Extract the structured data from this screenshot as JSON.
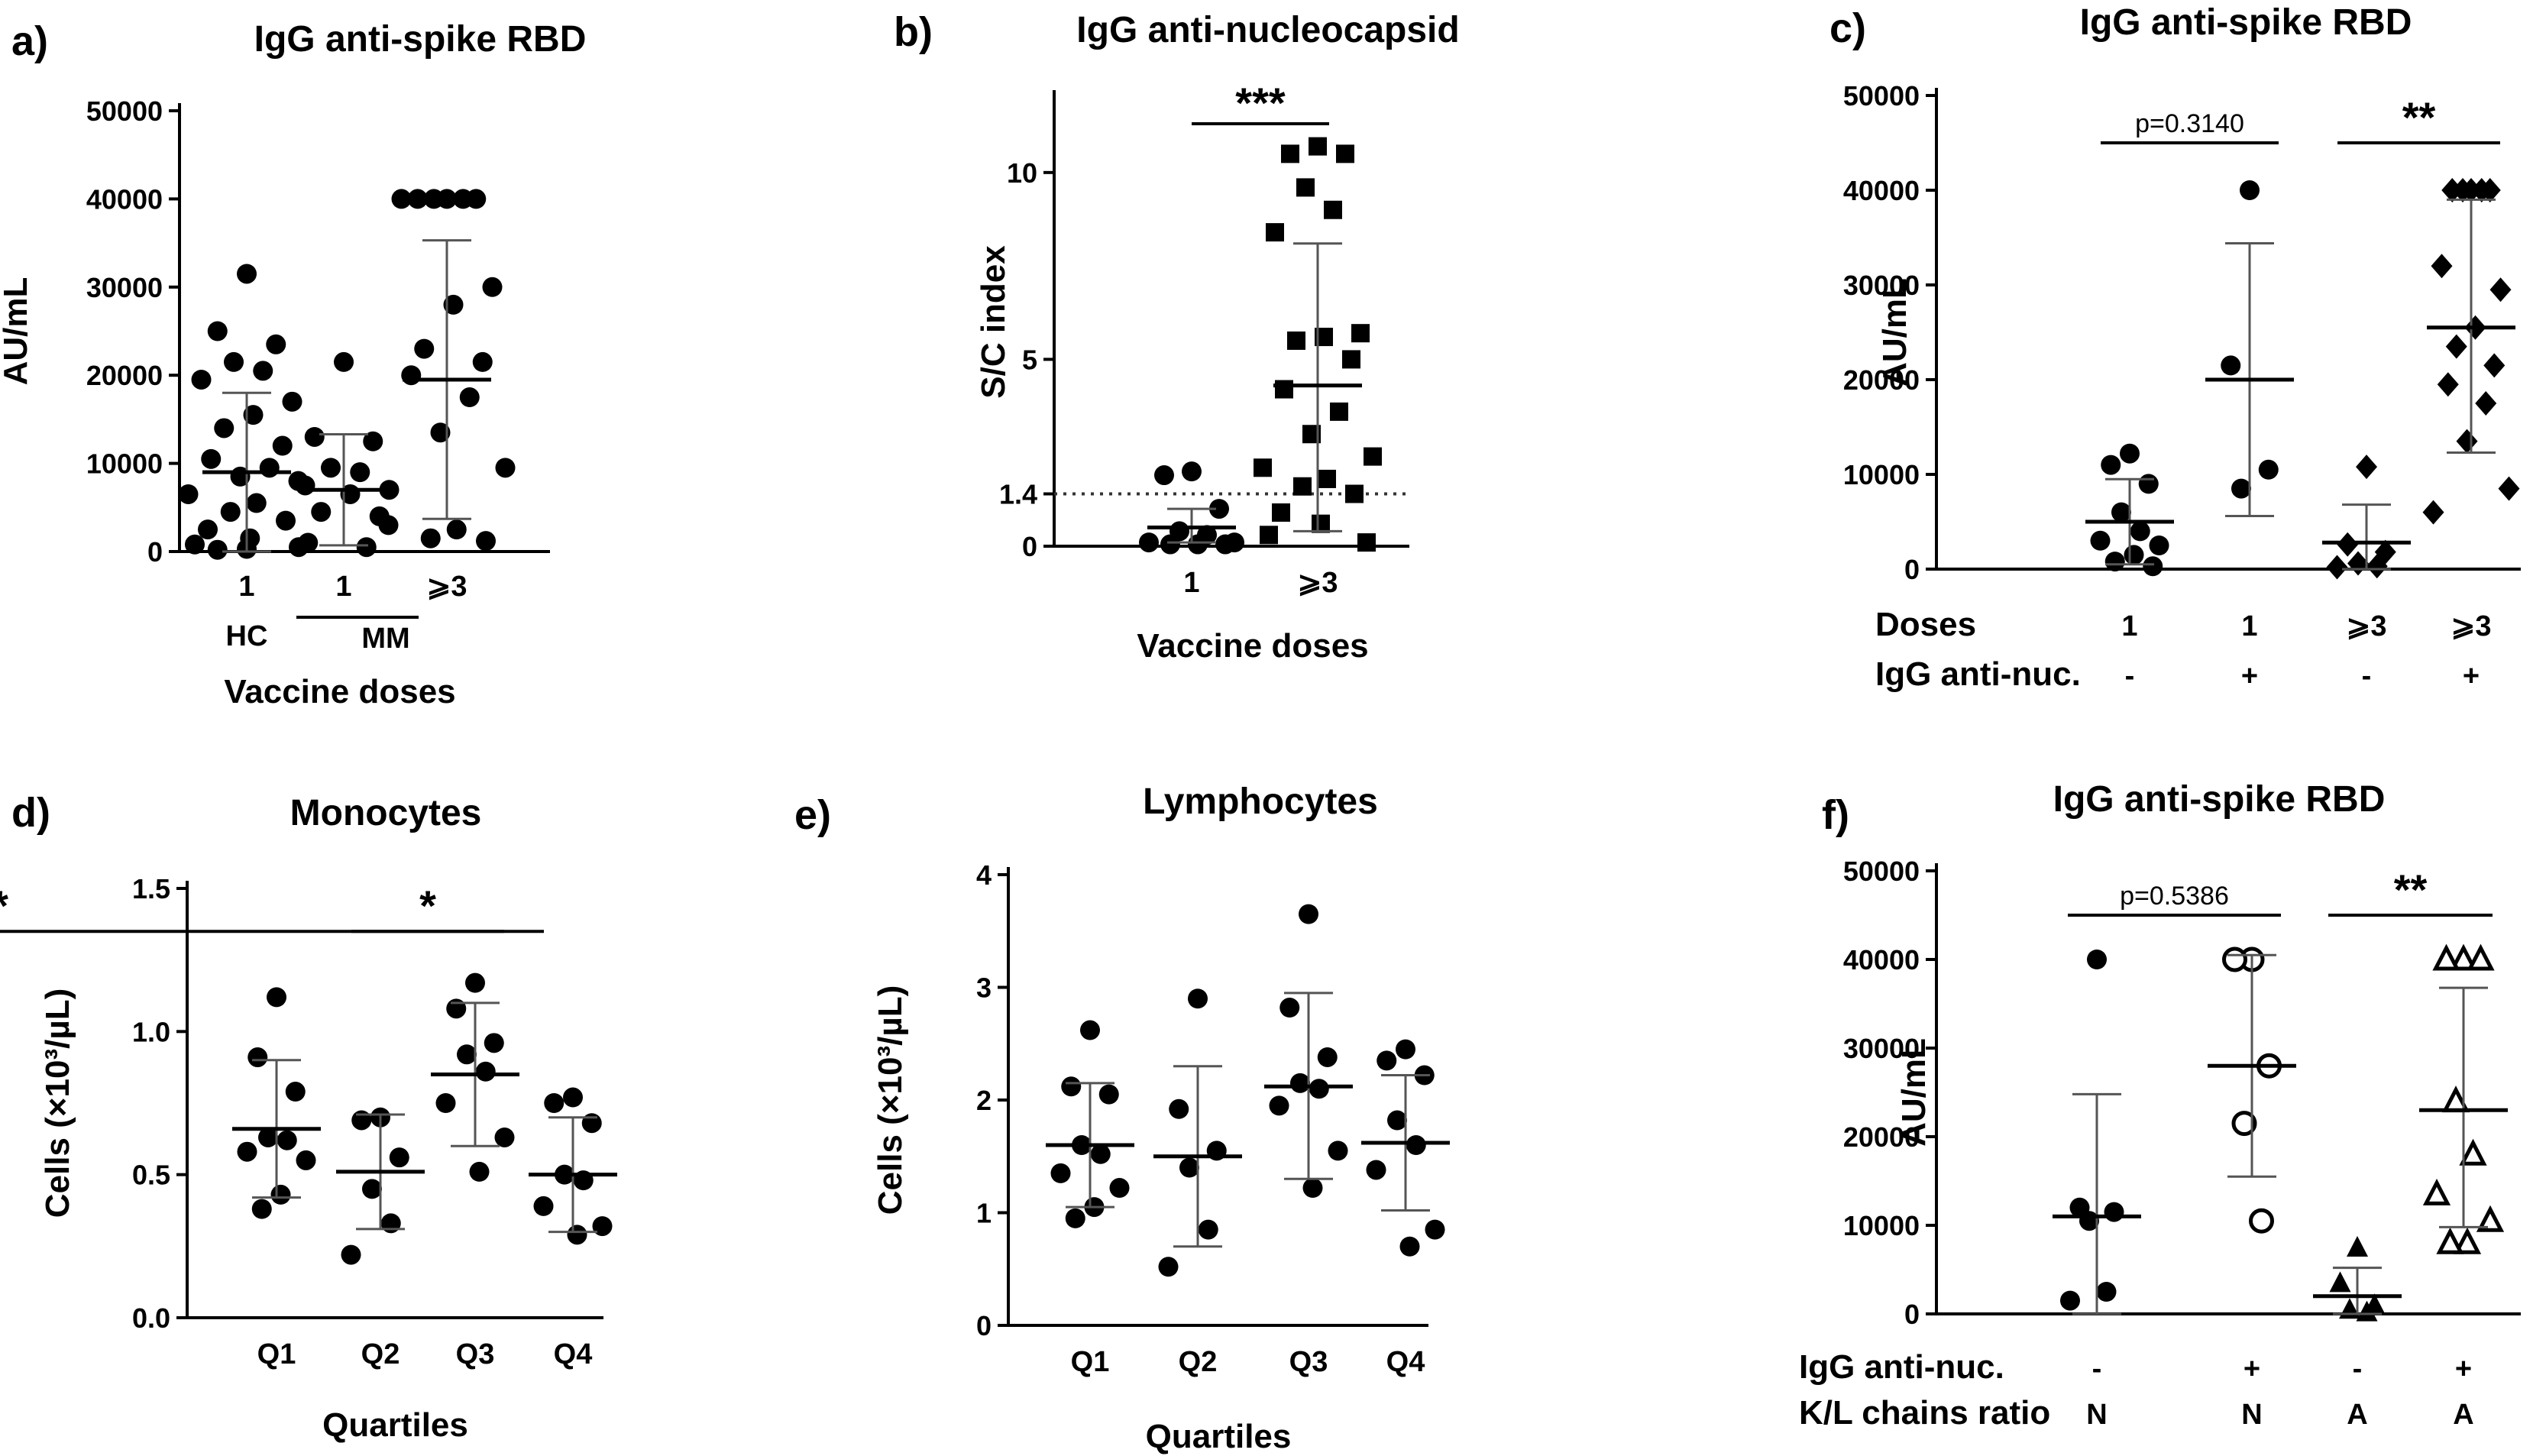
{
  "chart_data": [
    {
      "panel": "a)",
      "type": "scatter",
      "title": "IgG anti-spike RBD",
      "ylabel": "AU/mL",
      "xlabel": "Vaccine doses",
      "ylim": [
        0,
        50000
      ],
      "yticks": [
        "0",
        "10000",
        "20000",
        "30000",
        "40000",
        "50000"
      ],
      "subgroup_label": "MM",
      "groups": [
        {
          "label": "1",
          "sublabel": "HC",
          "marker": "circle",
          "mean": 9000,
          "sd_low": 0,
          "sd_high": 18000,
          "values": [
            31500,
            25000,
            23500,
            21500,
            20500,
            19500,
            17000,
            15500,
            14000,
            12000,
            10500,
            9500,
            8500,
            7500,
            6500,
            5500,
            4500,
            3500,
            2500,
            1500,
            800,
            500,
            300,
            200
          ]
        },
        {
          "label": "1",
          "sublabel": "",
          "marker": "circle",
          "mean": 7000,
          "sd_low": 700,
          "sd_high": 13300,
          "values": [
            21500,
            13000,
            12500,
            9500,
            9000,
            8000,
            7000,
            6500,
            4500,
            4000,
            1000,
            500
          ]
        },
        {
          "label": "⩾3",
          "sublabel": "",
          "marker": "circle",
          "mean": 19500,
          "sd_low": 3700,
          "sd_high": 35300,
          "values": [
            40000,
            40000,
            40000,
            40000,
            40000,
            40000,
            30000,
            28000,
            23000,
            21500,
            20000,
            17500,
            13500,
            9500,
            3000,
            2500,
            1500,
            1200
          ]
        }
      ]
    },
    {
      "panel": "b)",
      "type": "scatter",
      "title": "IgG anti-nucleocapsid",
      "ylabel": "S/C index",
      "xlabel": "Vaccine doses",
      "ylim": [
        0,
        12
      ],
      "yticks": [
        "0",
        "1.4",
        "5",
        "10"
      ],
      "threshold": 1.4,
      "significance": "***",
      "groups": [
        {
          "label": "1",
          "marker": "circle",
          "mean": 0.5,
          "sd_low": 0.1,
          "sd_high": 1.0,
          "values": [
            2.0,
            1.9,
            1.0,
            0.4,
            0.3,
            0.1,
            0.1,
            0.05,
            0.05,
            0.05
          ]
        },
        {
          "label": "⩾3",
          "marker": "square",
          "mean": 4.3,
          "sd_low": 0.4,
          "sd_high": 8.1,
          "values": [
            10.7,
            10.5,
            10.5,
            9.6,
            9.0,
            8.4,
            5.7,
            5.6,
            5.5,
            5.0,
            4.2,
            3.6,
            3.0,
            2.4,
            2.1,
            1.8,
            1.6,
            1.4,
            0.9,
            0.6,
            0.3,
            0.1
          ]
        }
      ]
    },
    {
      "panel": "c)",
      "type": "scatter",
      "title": "IgG anti-spike RBD",
      "ylabel": "AU/mL",
      "ylim": [
        0,
        50000
      ],
      "yticks": [
        "0",
        "10000",
        "20000",
        "30000",
        "40000",
        "50000"
      ],
      "row_labels": [
        "Doses",
        "IgG anti-nuc."
      ],
      "comparisons": [
        {
          "text": "p=0.3140"
        },
        {
          "text": "**"
        }
      ],
      "groups": [
        {
          "labels": [
            "1",
            "-"
          ],
          "marker": "circle",
          "mean": 5000,
          "sd_low": 500,
          "sd_high": 9500,
          "values": [
            12200,
            11000,
            9000,
            6000,
            4000,
            3000,
            2500,
            1500,
            800,
            300
          ]
        },
        {
          "labels": [
            "1",
            "+"
          ],
          "marker": "circle",
          "mean": 20000,
          "sd_low": 5600,
          "sd_high": 34400,
          "values": [
            40000,
            21500,
            10500,
            8500
          ]
        },
        {
          "labels": [
            "⩾3",
            "-"
          ],
          "marker": "diamond",
          "mean": 2800,
          "sd_low": 0,
          "sd_high": 6800,
          "values": [
            10800,
            2600,
            1800,
            600,
            300,
            200
          ]
        },
        {
          "labels": [
            "⩾3",
            "+"
          ],
          "marker": "diamond",
          "mean": 25500,
          "sd_low": 12300,
          "sd_high": 39000,
          "values": [
            40000,
            40000,
            40000,
            40000,
            40000,
            32000,
            29500,
            25500,
            23500,
            21500,
            19500,
            17500,
            13500,
            8500,
            6000
          ]
        }
      ]
    },
    {
      "panel": "d)",
      "type": "scatter",
      "title": "Monocytes",
      "ylabel": "Cells (×10³/µL)",
      "xlabel": "Quartiles",
      "ylim": [
        0,
        1.5
      ],
      "yticks": [
        "0.0",
        "0.5",
        "1.0",
        "1.5"
      ],
      "comparisons": [
        {
          "text": "*"
        },
        {
          "text": "*"
        }
      ],
      "groups": [
        {
          "label": "Q1",
          "marker": "circle",
          "mean": 0.66,
          "sd_low": 0.42,
          "sd_high": 0.9,
          "values": [
            1.12,
            0.91,
            0.79,
            0.63,
            0.62,
            0.58,
            0.55,
            0.43,
            0.38
          ]
        },
        {
          "label": "Q2",
          "marker": "circle",
          "mean": 0.51,
          "sd_low": 0.31,
          "sd_high": 0.71,
          "values": [
            0.7,
            0.69,
            0.56,
            0.45,
            0.33,
            0.22
          ]
        },
        {
          "label": "Q3",
          "marker": "circle",
          "mean": 0.85,
          "sd_low": 0.6,
          "sd_high": 1.1,
          "values": [
            1.17,
            1.08,
            0.96,
            0.92,
            0.86,
            0.75,
            0.63,
            0.51
          ]
        },
        {
          "label": "Q4",
          "marker": "circle",
          "mean": 0.5,
          "sd_low": 0.3,
          "sd_high": 0.7,
          "values": [
            0.77,
            0.75,
            0.68,
            0.5,
            0.48,
            0.39,
            0.32,
            0.29
          ]
        }
      ]
    },
    {
      "panel": "e)",
      "type": "scatter",
      "title": "Lymphocytes",
      "ylabel": "Cells (×10³/µL)",
      "xlabel": "Quartiles",
      "ylim": [
        0,
        4
      ],
      "yticks": [
        "0",
        "1",
        "2",
        "3",
        "4"
      ],
      "groups": [
        {
          "label": "Q1",
          "marker": "circle",
          "mean": 1.6,
          "sd_low": 1.05,
          "sd_high": 2.15,
          "values": [
            2.62,
            2.12,
            2.05,
            1.6,
            1.52,
            1.35,
            1.22,
            1.05,
            0.95
          ]
        },
        {
          "label": "Q2",
          "marker": "circle",
          "mean": 1.5,
          "sd_low": 0.7,
          "sd_high": 2.3,
          "values": [
            2.9,
            1.92,
            1.55,
            1.4,
            0.85,
            0.52
          ]
        },
        {
          "label": "Q3",
          "marker": "circle",
          "mean": 2.12,
          "sd_low": 1.3,
          "sd_high": 2.95,
          "values": [
            3.65,
            2.82,
            2.38,
            2.15,
            2.1,
            1.95,
            1.55,
            1.22
          ]
        },
        {
          "label": "Q4",
          "marker": "circle",
          "mean": 1.62,
          "sd_low": 1.02,
          "sd_high": 2.22,
          "values": [
            2.45,
            2.35,
            2.22,
            1.82,
            1.6,
            1.38,
            0.85,
            0.7
          ]
        }
      ]
    },
    {
      "panel": "f)",
      "type": "scatter",
      "title": "IgG anti-spike RBD",
      "ylabel": "AU/mL",
      "ylim": [
        0,
        50000
      ],
      "yticks": [
        "0",
        "10000",
        "20000",
        "30000",
        "40000",
        "50000"
      ],
      "row_labels": [
        "IgG anti-nuc.",
        "K/L chains ratio"
      ],
      "comparisons": [
        {
          "text": "p=0.5386"
        },
        {
          "text": "**"
        }
      ],
      "groups": [
        {
          "labels": [
            "-",
            "N"
          ],
          "marker": "circle",
          "mean": 11000,
          "sd_low": 0,
          "sd_high": 24800,
          "values": [
            40000,
            12000,
            11500,
            10500,
            2500,
            1500
          ]
        },
        {
          "labels": [
            "+",
            "N"
          ],
          "marker": "circle-open",
          "mean": 28000,
          "sd_low": 15500,
          "sd_high": 40500,
          "values": [
            40000,
            40000,
            28000,
            21500,
            10500
          ]
        },
        {
          "labels": [
            "-",
            "A"
          ],
          "marker": "triangle",
          "mean": 2000,
          "sd_low": 0,
          "sd_high": 5200,
          "values": [
            7500,
            3500,
            1000,
            500,
            200
          ]
        },
        {
          "labels": [
            "+",
            "A"
          ],
          "marker": "triangle-open",
          "mean": 23000,
          "sd_low": 9800,
          "sd_high": 36800,
          "values": [
            40000,
            40000,
            40000,
            24000,
            18000,
            13500,
            10500,
            8000,
            8000
          ]
        }
      ]
    }
  ]
}
